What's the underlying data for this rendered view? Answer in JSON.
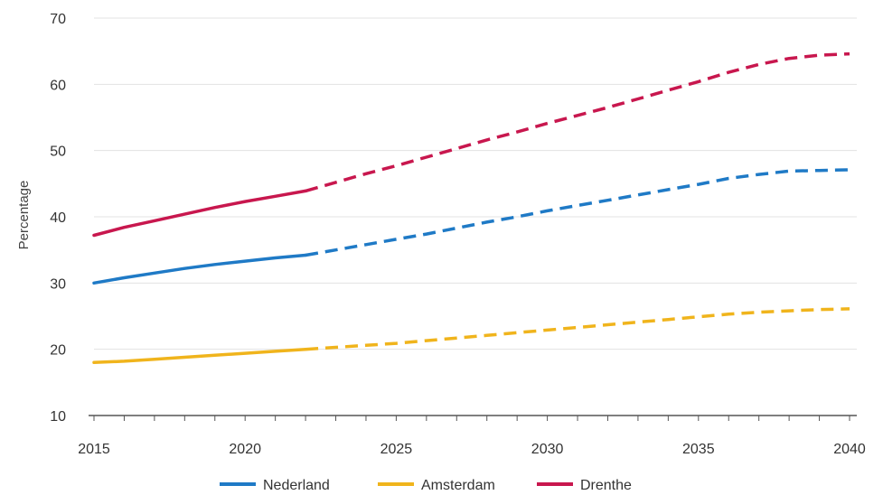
{
  "chart_data": {
    "type": "line",
    "title": "",
    "xlabel": "",
    "ylabel": "Percentage",
    "xlim": [
      2015,
      2040
    ],
    "ylim": [
      10,
      70
    ],
    "xticks": [
      2015,
      2020,
      2025,
      2030,
      2035,
      2040
    ],
    "yticks": [
      10,
      20,
      30,
      40,
      50,
      60,
      70
    ],
    "grid": "horizontal",
    "legend_position": "bottom",
    "forecast_from": 2022,
    "series": [
      {
        "name": "Nederland",
        "color": "#1f7ac6",
        "x": [
          2015,
          2016,
          2017,
          2018,
          2019,
          2020,
          2021,
          2022,
          2023,
          2024,
          2025,
          2026,
          2027,
          2028,
          2029,
          2030,
          2031,
          2032,
          2033,
          2034,
          2035,
          2036,
          2037,
          2038,
          2039,
          2040
        ],
        "y": [
          30.0,
          30.8,
          31.5,
          32.2,
          32.8,
          33.3,
          33.8,
          34.2,
          35.0,
          35.8,
          36.6,
          37.4,
          38.3,
          39.2,
          40.0,
          40.9,
          41.7,
          42.5,
          43.3,
          44.1,
          44.9,
          45.8,
          46.4,
          46.9,
          47.0,
          47.1
        ]
      },
      {
        "name": "Amsterdam",
        "color": "#f0b41c",
        "x": [
          2015,
          2016,
          2017,
          2018,
          2019,
          2020,
          2021,
          2022,
          2023,
          2024,
          2025,
          2026,
          2027,
          2028,
          2029,
          2030,
          2031,
          2032,
          2033,
          2034,
          2035,
          2036,
          2037,
          2038,
          2039,
          2040
        ],
        "y": [
          18.0,
          18.2,
          18.5,
          18.8,
          19.1,
          19.4,
          19.7,
          20.0,
          20.3,
          20.6,
          20.9,
          21.3,
          21.7,
          22.1,
          22.5,
          22.9,
          23.3,
          23.7,
          24.1,
          24.5,
          24.9,
          25.3,
          25.6,
          25.8,
          26.0,
          26.1
        ]
      },
      {
        "name": "Drenthe",
        "color": "#c8174e",
        "x": [
          2015,
          2016,
          2017,
          2018,
          2019,
          2020,
          2021,
          2022,
          2023,
          2024,
          2025,
          2026,
          2027,
          2028,
          2029,
          2030,
          2031,
          2032,
          2033,
          2034,
          2035,
          2036,
          2037,
          2038,
          2039,
          2040
        ],
        "y": [
          37.2,
          38.4,
          39.4,
          40.4,
          41.4,
          42.3,
          43.1,
          43.9,
          45.2,
          46.5,
          47.7,
          49.0,
          50.3,
          51.6,
          52.8,
          54.1,
          55.3,
          56.5,
          57.8,
          59.1,
          60.4,
          61.8,
          63.0,
          63.9,
          64.4,
          64.6
        ]
      }
    ]
  }
}
